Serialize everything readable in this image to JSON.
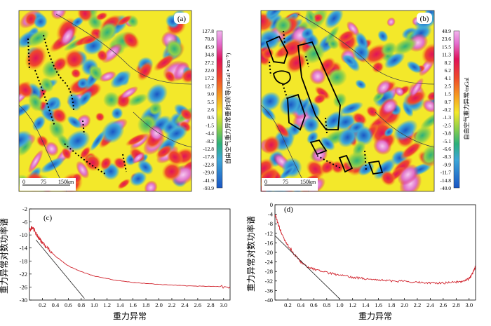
{
  "chart_data": [
    {
      "type": "heatmap",
      "panel_label": "(a)",
      "colorbar_title": "自由空气重力异常垂向5阶导/(mGal • km⁻⁵)",
      "colorbar_ticks": [
        "127.8",
        "70.8",
        "45.9",
        "34.8",
        "27.2",
        "22.0",
        "17.2",
        "12.7",
        "9.0",
        "5.5",
        "2.6",
        "0.5",
        "-1.5",
        "-4.4",
        "-8.2",
        "-12.8",
        "-17.8",
        "-22.8",
        "-29.0",
        "-41.9",
        "-93.9"
      ],
      "scale_bar": {
        "labels": [
          "0",
          "75",
          "150km"
        ]
      }
    },
    {
      "type": "heatmap",
      "panel_label": "(b)",
      "colorbar_title": "自由空气重力异常/mGal",
      "colorbar_ticks": [
        "48.9",
        "23.6",
        "15.5",
        "11.3",
        "8.2",
        "6.2",
        "4.1",
        "2.5",
        "1.5",
        "0.7",
        "-0.2",
        "-1.3",
        "-2.5",
        "-3.8",
        "-5.1",
        "-6.6",
        "-8.3",
        "-9.9",
        "-11.7",
        "-14.8",
        "-40.0"
      ],
      "scale_bar": {
        "labels": [
          "0",
          "75",
          "150km"
        ]
      }
    },
    {
      "type": "line",
      "panel_label": "(c)",
      "xlabel": "重力异常",
      "ylabel": "重力异常对数功率谱",
      "xlim": [
        0,
        3.1
      ],
      "ylim": [
        -30,
        -2
      ],
      "xticks": [
        "0.2",
        "0.4",
        "0.6",
        "0.8",
        "1.0",
        "1.2",
        "1.4",
        "1.6",
        "1.8",
        "2.0",
        "2.2",
        "2.4",
        "2.6",
        "2.8",
        "3.0"
      ],
      "yticks": [
        "-2",
        "-6",
        "-10",
        "-14",
        "-18",
        "-22",
        "-26",
        "-30"
      ],
      "series": [
        {
          "name": "spectrum",
          "x": [
            0.0,
            0.05,
            0.1,
            0.15,
            0.2,
            0.3,
            0.4,
            0.6,
            0.8,
            1.0,
            1.3,
            1.6,
            2.0,
            2.4,
            2.8,
            3.1
          ],
          "y": [
            -8.5,
            -7.5,
            -9.5,
            -11,
            -12.5,
            -14.5,
            -16.5,
            -19.5,
            -21.3,
            -22.6,
            -23.8,
            -24.6,
            -25.2,
            -25.6,
            -25.8,
            -25.9
          ]
        },
        {
          "name": "trend",
          "x": [
            0.1,
            0.85
          ],
          "y": [
            -11.5,
            -29.5
          ]
        }
      ]
    },
    {
      "type": "line",
      "panel_label": "(d)",
      "xlabel": "重力异常",
      "ylabel": "重力异常对数功率谱",
      "xlim": [
        0,
        3.1
      ],
      "ylim": [
        -40,
        0
      ],
      "xticks": [
        "0.2",
        "0.4",
        "0.6",
        "0.8",
        "1.0",
        "1.2",
        "1.4",
        "1.6",
        "1.8",
        "2.0",
        "2.2",
        "2.4",
        "2.6",
        "2.8",
        "3.0"
      ],
      "yticks": [
        "0",
        "-4",
        "-8",
        "-12",
        "-16",
        "-20",
        "-24",
        "-28",
        "-32",
        "-36",
        "-40"
      ],
      "series": [
        {
          "name": "spectrum",
          "x": [
            0.0,
            0.05,
            0.1,
            0.2,
            0.3,
            0.4,
            0.5,
            0.6,
            0.8,
            1.0,
            1.2,
            1.4,
            1.6,
            1.8,
            2.0,
            2.2,
            2.4,
            2.6,
            2.8,
            2.9,
            3.0,
            3.05,
            3.1
          ],
          "y": [
            -4,
            -8,
            -12,
            -17,
            -21,
            -24,
            -26,
            -27,
            -28.5,
            -29.5,
            -30.5,
            -31,
            -31.5,
            -32,
            -32.2,
            -32.5,
            -32.8,
            -32.8,
            -32.5,
            -32,
            -31,
            -29,
            -26
          ]
        },
        {
          "name": "trend",
          "x": [
            0.0,
            1.0
          ],
          "y": [
            -13,
            -39.5
          ]
        }
      ]
    }
  ]
}
